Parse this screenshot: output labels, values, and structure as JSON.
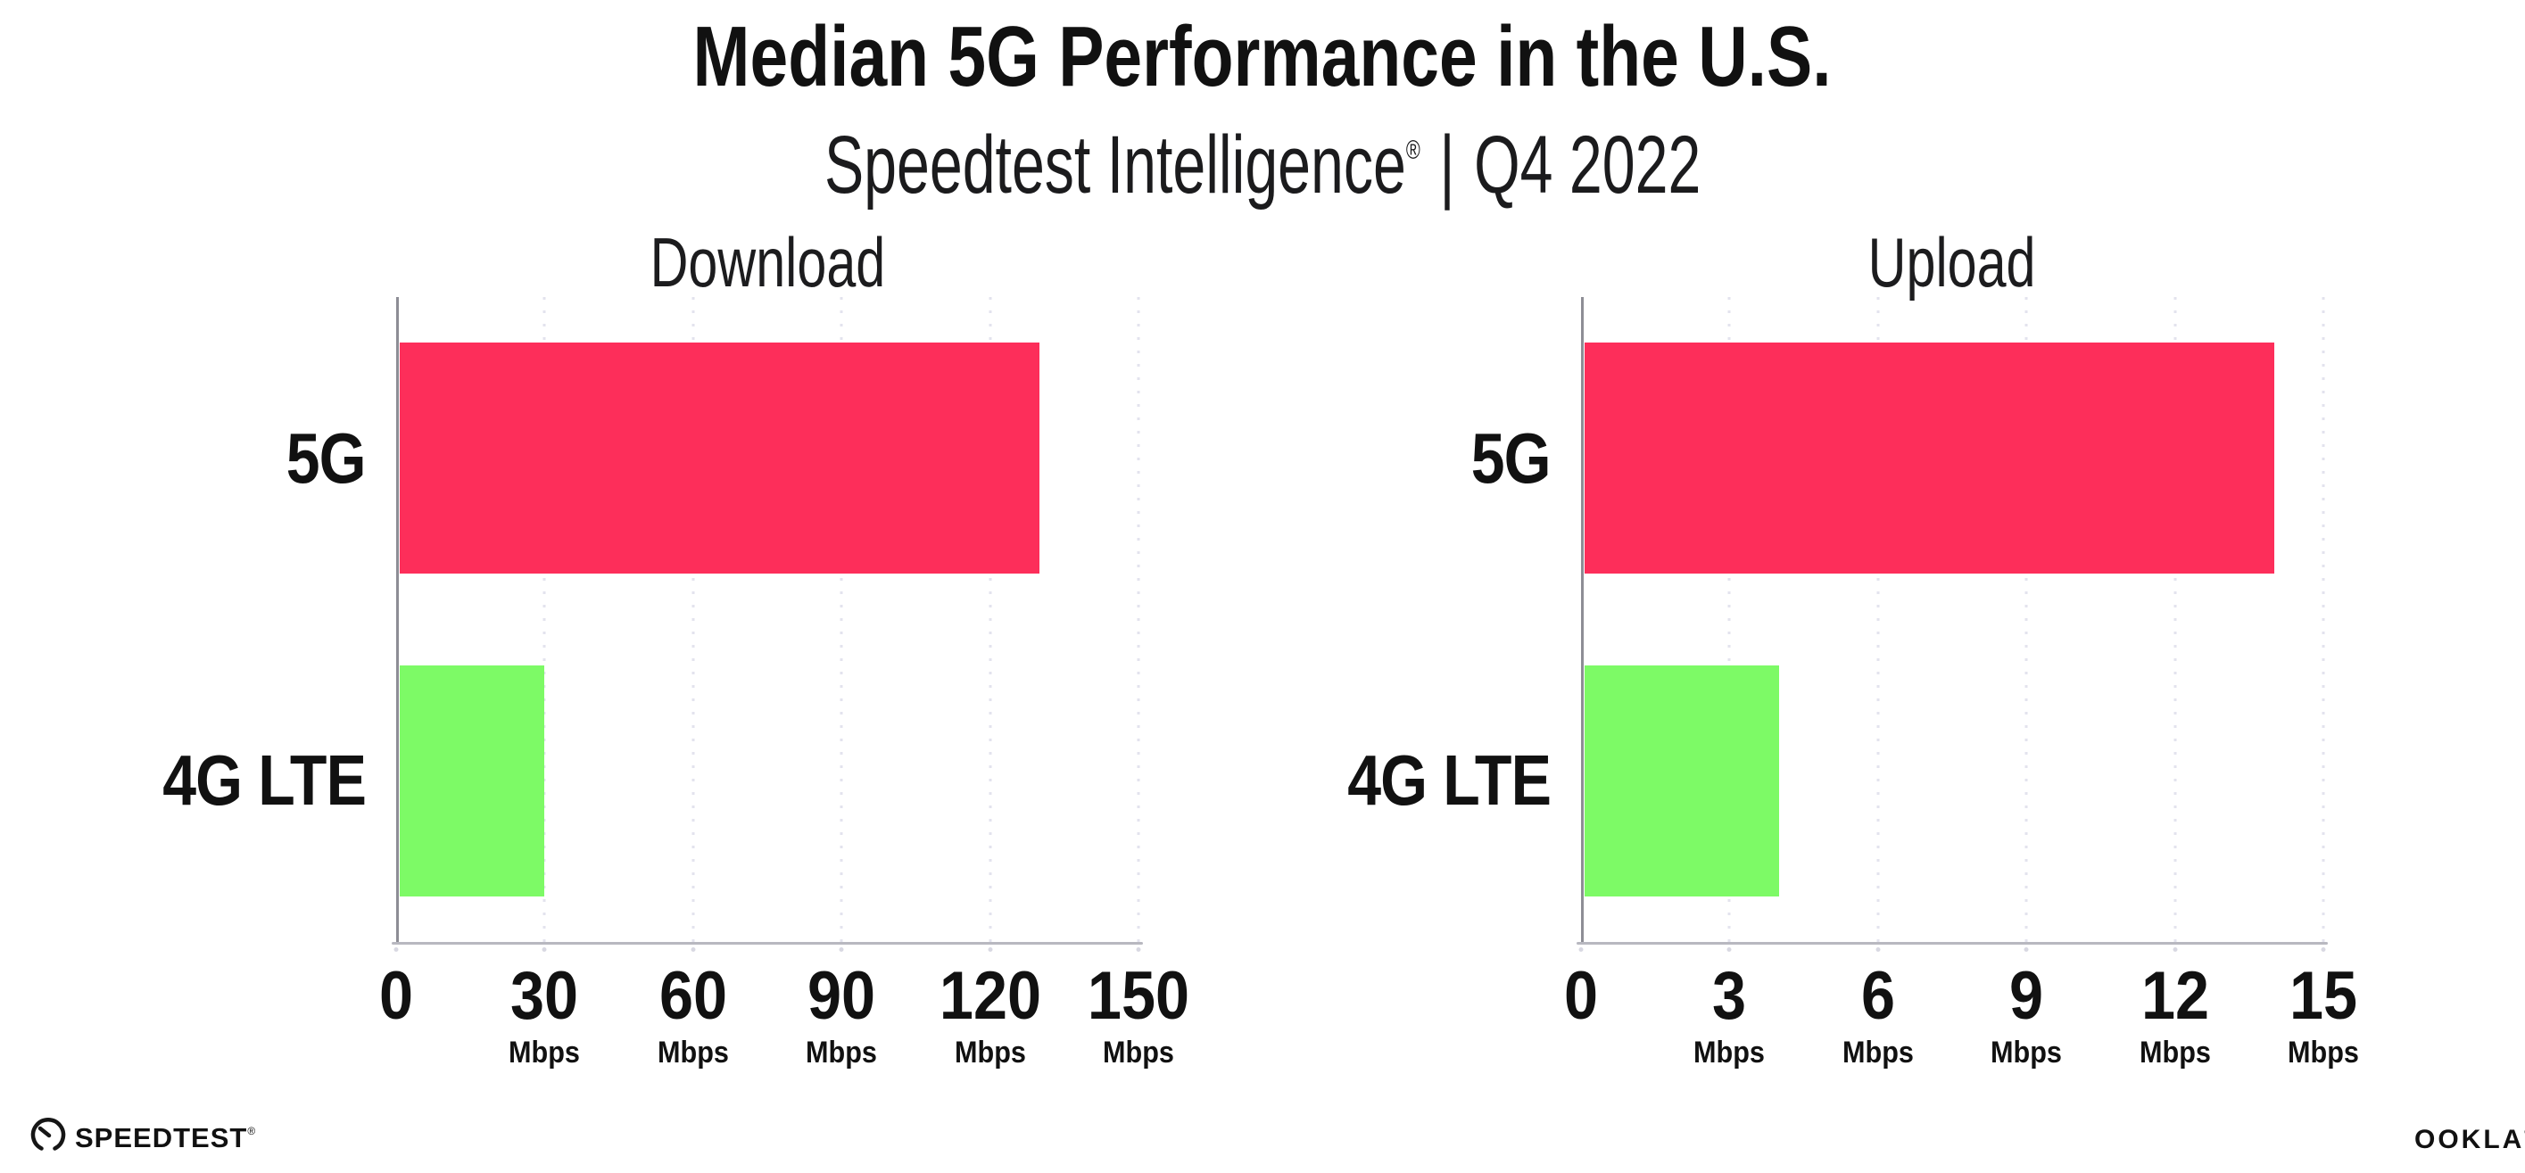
{
  "header": {
    "title": "Median 5G Performance in the U.S.",
    "subtitle": {
      "brand": "Speedtest Intelligence",
      "reg_mark": "®",
      "separator": "|",
      "period": "Q4 2022"
    }
  },
  "chart_data": [
    {
      "type": "bar",
      "orientation": "horizontal",
      "title": "Download",
      "categories": [
        "5G",
        "4G LTE"
      ],
      "values": [
        130,
        30
      ],
      "value_unit": "Mbps",
      "xlim": [
        0,
        150
      ],
      "xticks": [
        0,
        30,
        60,
        90,
        120,
        150
      ],
      "xtick_unit": "Mbps",
      "xlabel": "",
      "ylabel": "",
      "grid": "dotted vertical gridlines at each tick",
      "legend": "none",
      "bar_colors": [
        "#fd2e5a",
        "#7dfa66"
      ]
    },
    {
      "type": "bar",
      "orientation": "horizontal",
      "title": "Upload",
      "categories": [
        "5G",
        "4G LTE"
      ],
      "values": [
        14,
        4
      ],
      "value_unit": "Mbps",
      "xlim": [
        0,
        15
      ],
      "xticks": [
        0,
        3,
        6,
        9,
        12,
        15
      ],
      "xtick_unit": "Mbps",
      "xlabel": "",
      "ylabel": "",
      "grid": "dotted vertical gridlines at each tick",
      "legend": "none",
      "bar_colors": [
        "#fd2e5a",
        "#7dfa66"
      ]
    }
  ],
  "colors": {
    "bar_5g": "#fd2e5a",
    "bar_4g_lte": "#7dfa66",
    "gridline": "#e3e3ee",
    "x_axis_line": "#b8b8c0",
    "y_axis_line": "#8d8d95",
    "text": "#111111",
    "background": "#ffffff"
  },
  "footer": {
    "speedtest_logo_text": "SPEEDTEST",
    "speedtest_mark": "®",
    "ookla_logo_text": "OOKLA",
    "ookla_mark": "®"
  }
}
